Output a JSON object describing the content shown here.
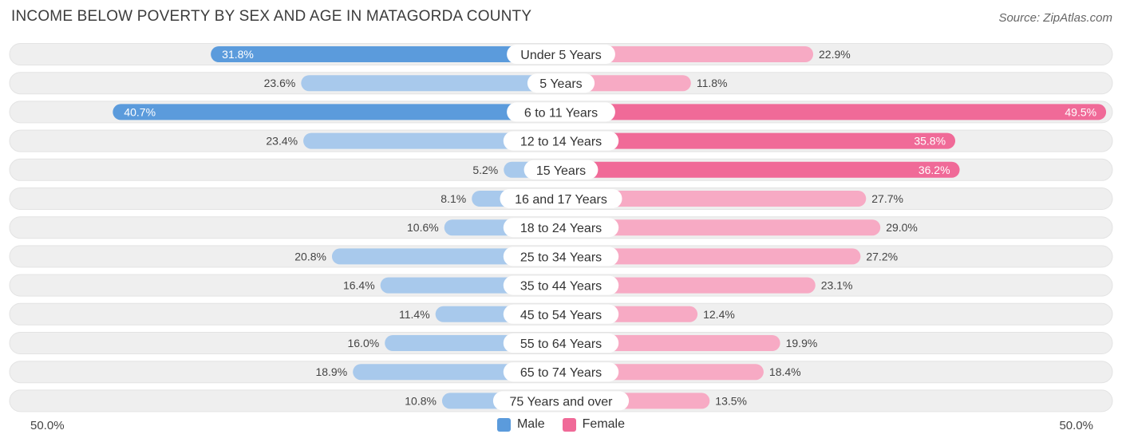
{
  "title": "INCOME BELOW POVERTY BY SEX AND AGE IN MATAGORDA COUNTY",
  "source": "Source: ZipAtlas.com",
  "colors": {
    "male_strong": "#5b9bdc",
    "male_light": "#a8c9ec",
    "female_strong": "#f06a98",
    "female_light": "#f7aac4",
    "track": "#efefef"
  },
  "chart_data": {
    "type": "bar",
    "orientation": "horizontal-diverging",
    "categories": [
      "Under 5 Years",
      "5 Years",
      "6 to 11 Years",
      "12 to 14 Years",
      "15 Years",
      "16 and 17 Years",
      "18 to 24 Years",
      "25 to 34 Years",
      "35 to 44 Years",
      "45 to 54 Years",
      "55 to 64 Years",
      "65 to 74 Years",
      "75 Years and over"
    ],
    "series": [
      {
        "name": "Male",
        "values": [
          31.8,
          23.6,
          40.7,
          23.4,
          5.2,
          8.1,
          10.6,
          20.8,
          16.4,
          11.4,
          16.0,
          18.9,
          10.8
        ],
        "labels": [
          "31.8%",
          "23.6%",
          "40.7%",
          "23.4%",
          "5.2%",
          "8.1%",
          "10.6%",
          "20.8%",
          "16.4%",
          "11.4%",
          "16.0%",
          "18.9%",
          "10.8%"
        ]
      },
      {
        "name": "Female",
        "values": [
          22.9,
          11.8,
          49.5,
          35.8,
          36.2,
          27.7,
          29.0,
          27.2,
          23.1,
          12.4,
          19.9,
          18.4,
          13.5
        ],
        "labels": [
          "22.9%",
          "11.8%",
          "49.5%",
          "35.8%",
          "36.2%",
          "27.7%",
          "29.0%",
          "27.2%",
          "23.1%",
          "12.4%",
          "19.9%",
          "18.4%",
          "13.5%"
        ]
      }
    ],
    "xlim": [
      -50,
      50
    ],
    "axis_left_label": "50.0%",
    "axis_right_label": "50.0%",
    "legend": [
      "Male",
      "Female"
    ]
  }
}
